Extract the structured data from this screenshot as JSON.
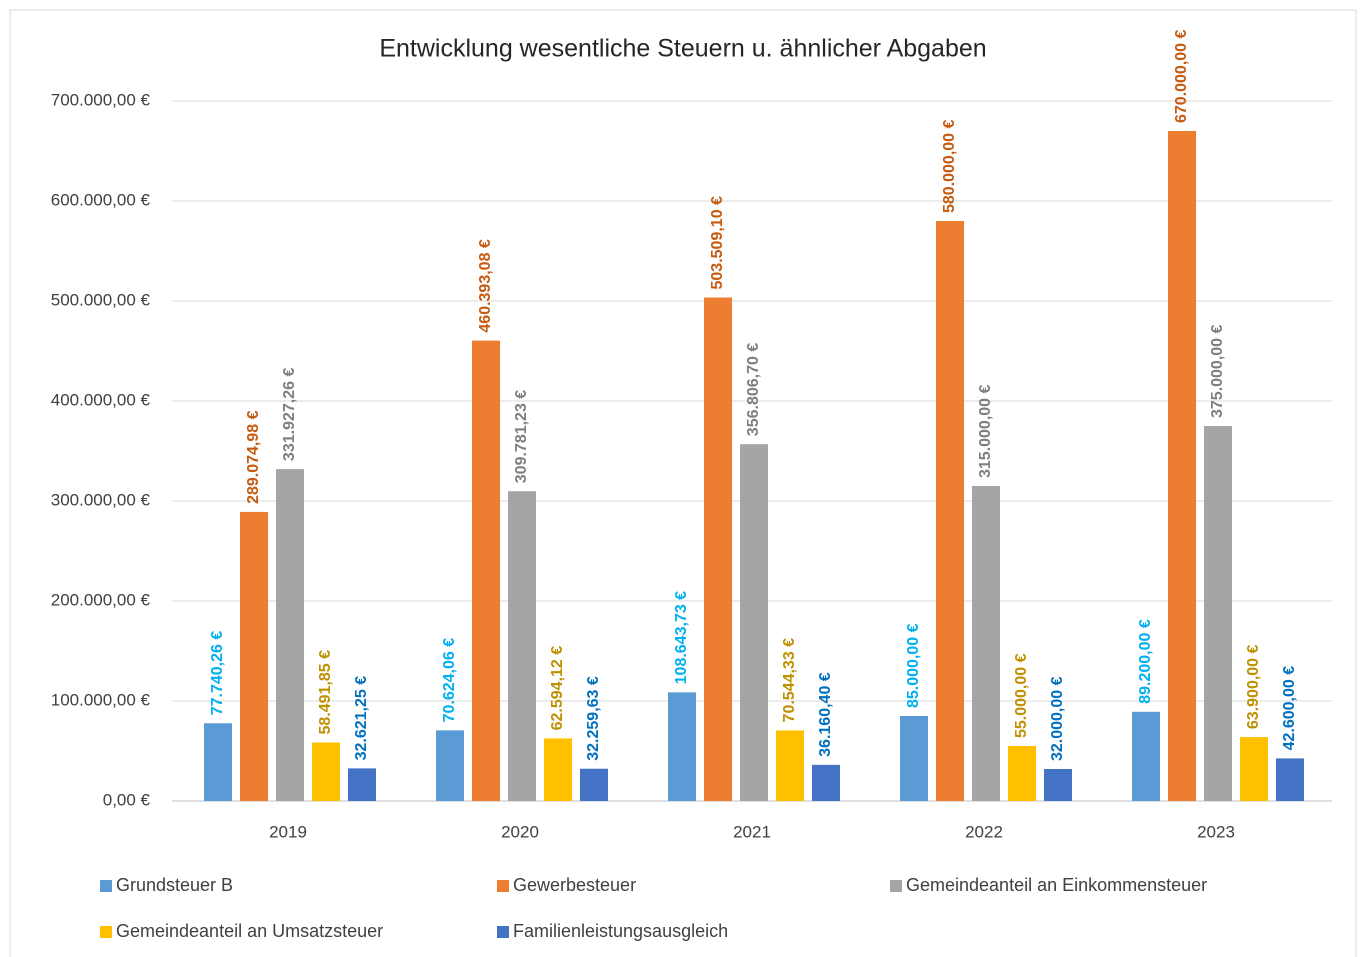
{
  "chart_data": {
    "type": "bar",
    "title": "Entwicklung wesentliche Steuern u. ähnlicher Abgaben",
    "categories": [
      "2019",
      "2020",
      "2021",
      "2022",
      "2023"
    ],
    "series": [
      {
        "name": "Grundsteuer B",
        "color": "#5b9bd5",
        "label_color": "#00b0f0",
        "values": [
          77740.26,
          70624.06,
          108643.73,
          85000,
          89200
        ],
        "value_labels": [
          "77.740,26 €",
          "70.624,06 €",
          "108.643,73 €",
          "85.000,00 €",
          "89.200,00 €"
        ]
      },
      {
        "name": "Gewerbesteuer",
        "color": "#ed7d31",
        "label_color": "#c55a11",
        "values": [
          289074.98,
          460393.08,
          503509.1,
          580000,
          670000
        ],
        "value_labels": [
          "289.074,98 €",
          "460.393,08 €",
          "503.509,10 €",
          "580.000,00 €",
          "670.000,00 €"
        ]
      },
      {
        "name": "Gemeindeanteil an Einkommensteuer",
        "color": "#a5a5a5",
        "label_color": "#7f7f7f",
        "values": [
          331927.26,
          309781.23,
          356806.7,
          315000,
          375000
        ],
        "value_labels": [
          "331.927,26 €",
          "309.781,23 €",
          "356.806,70 €",
          "315.000,00 €",
          "375.000,00 €"
        ]
      },
      {
        "name": "Gemeindeanteil an Umsatzsteuer",
        "color": "#ffc000",
        "label_color": "#bf9000",
        "values": [
          58491.85,
          62594.12,
          70544.33,
          55000,
          63900
        ],
        "value_labels": [
          "58.491,85 €",
          "62.594,12 €",
          "70.544,33 €",
          "55.000,00 €",
          "63.900,00 €"
        ]
      },
      {
        "name": "Familienleistungsausgleich",
        "color": "#4472c4",
        "label_color": "#0070c0",
        "values": [
          32621.25,
          32259.63,
          36160.4,
          32000,
          42600
        ],
        "value_labels": [
          "32.621,25 €",
          "32.259,63 €",
          "36.160,40 €",
          "32.000,00 €",
          "42.600,00 €"
        ]
      }
    ],
    "ylim": [
      0,
      700000
    ],
    "yticks": [
      {
        "value": 0,
        "label": "0,00 €"
      },
      {
        "value": 100000,
        "label": "100.000,00 €"
      },
      {
        "value": 200000,
        "label": "200.000,00 €"
      },
      {
        "value": 300000,
        "label": "300.000,00 €"
      },
      {
        "value": 400000,
        "label": "400.000,00 €"
      },
      {
        "value": 500000,
        "label": "500.000,00 €"
      },
      {
        "value": 600000,
        "label": "600.000,00 €"
      },
      {
        "value": 700000,
        "label": "700.000,00 €"
      }
    ],
    "grid": true,
    "legend": "bottom"
  }
}
